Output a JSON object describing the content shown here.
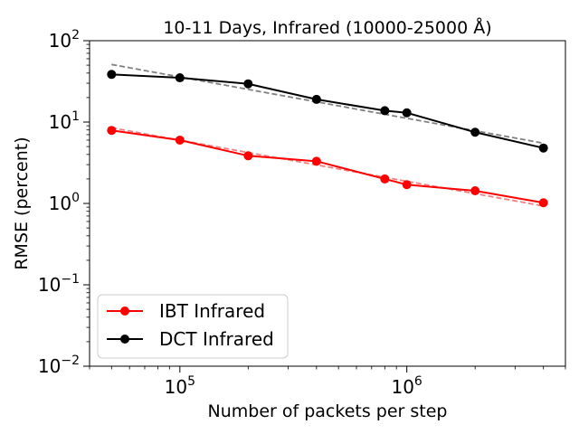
{
  "chart_data": {
    "type": "line",
    "title": "10-11 Days, Infrared (10000-25000 Å)",
    "xlabel": "Number of packets per step",
    "ylabel": "RMSE (percent)",
    "xscale": "log",
    "yscale": "log",
    "xlim": [
      40000,
      5000000
    ],
    "ylim": [
      0.01,
      100
    ],
    "x_major_ticks": [
      {
        "value": 100000,
        "base": "10",
        "exp": "5"
      },
      {
        "value": 1000000,
        "base": "10",
        "exp": "6"
      }
    ],
    "y_major_ticks": [
      {
        "value": 0.01,
        "base": "10",
        "exp": "−2"
      },
      {
        "value": 0.1,
        "base": "10",
        "exp": "−1"
      },
      {
        "value": 1,
        "base": "10",
        "exp": "0"
      },
      {
        "value": 10,
        "base": "10",
        "exp": "1"
      },
      {
        "value": 100,
        "base": "10",
        "exp": "2"
      }
    ],
    "legend_location": "lower-left",
    "series": [
      {
        "name": "IBT Infrared",
        "color": "#ff0000",
        "x": [
          50000,
          100000,
          200000,
          400000,
          800000,
          1000000,
          2000000,
          4000000
        ],
        "y": [
          7.9,
          6.0,
          3.85,
          3.3,
          2.0,
          1.7,
          1.43,
          1.02
        ]
      },
      {
        "name": "DCT Infrared",
        "color": "#000000",
        "x": [
          50000,
          100000,
          200000,
          400000,
          800000,
          1000000,
          2000000,
          4000000
        ],
        "y": [
          38.5,
          35.0,
          29.5,
          19.0,
          13.8,
          13.0,
          7.5,
          4.8
        ]
      }
    ],
    "fits": [
      {
        "series": "IBT Infrared",
        "color": "#f08080",
        "style": "dashed",
        "x": [
          50000,
          4000000
        ],
        "y": [
          8.5,
          0.93
        ]
      },
      {
        "series": "DCT Infrared",
        "color": "#808080",
        "style": "dashed",
        "x": [
          50000,
          4000000
        ],
        "y": [
          51.0,
          5.5
        ]
      }
    ]
  }
}
